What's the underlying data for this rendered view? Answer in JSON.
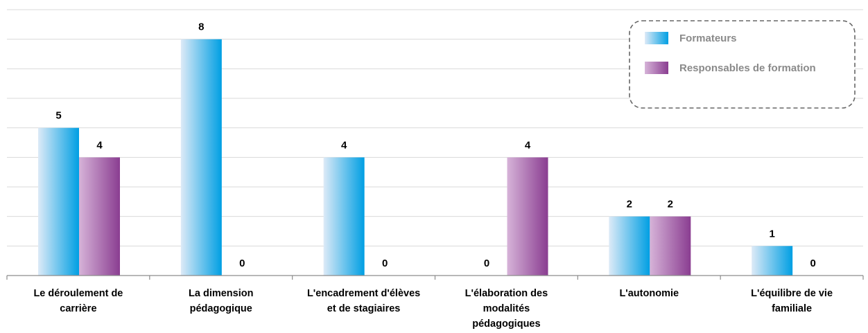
{
  "chart_data": {
    "type": "bar",
    "categories": [
      [
        "Le déroulement de",
        "carrière"
      ],
      [
        "La dimension",
        "pédagogique"
      ],
      [
        "L'encadrement d'élèves",
        "et de stagiaires"
      ],
      [
        "L'élaboration des",
        "modalités",
        "pédagogiques"
      ],
      [
        "L'autonomie"
      ],
      [
        "L'équilibre de vie",
        "familiale"
      ]
    ],
    "series": [
      {
        "name": "Formateurs",
        "values": [
          5,
          8,
          4,
          0,
          2,
          1
        ],
        "color_light": "#ddeaf7",
        "color_dark": "#009fe3"
      },
      {
        "name": "Responsables de formation",
        "values": [
          4,
          0,
          0,
          4,
          2,
          0
        ],
        "color_light": "#d6b3d8",
        "color_dark": "#8a3d91"
      }
    ],
    "ylim": [
      0,
      9
    ],
    "grid": true,
    "legend_position": "top-right",
    "data_labels": true
  }
}
